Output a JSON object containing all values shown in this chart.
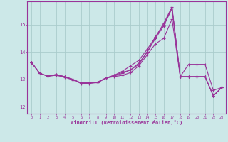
{
  "xlabel": "Windchill (Refroidissement éolien,°C)",
  "bg_color": "#cce8e8",
  "grid_color": "#aacccc",
  "line_color": "#993399",
  "xlim": [
    -0.5,
    23.5
  ],
  "ylim": [
    11.75,
    15.85
  ],
  "yticks": [
    12,
    13,
    14,
    15
  ],
  "xticks": [
    0,
    1,
    2,
    3,
    4,
    5,
    6,
    7,
    8,
    9,
    10,
    11,
    12,
    13,
    14,
    15,
    16,
    17,
    18,
    19,
    20,
    21,
    22,
    23
  ],
  "curves": [
    [
      13.62,
      13.22,
      13.12,
      13.18,
      13.1,
      13.0,
      12.87,
      12.87,
      12.88,
      13.05,
      13.1,
      13.15,
      13.25,
      13.5,
      13.9,
      14.3,
      14.5,
      15.2,
      13.1,
      13.55,
      13.55,
      13.55,
      12.6,
      12.7
    ],
    [
      13.62,
      13.22,
      13.12,
      13.18,
      13.1,
      13.0,
      12.87,
      12.87,
      12.88,
      13.05,
      13.15,
      13.25,
      13.35,
      13.6,
      14.0,
      14.55,
      15.0,
      15.6,
      13.1,
      13.1,
      13.1,
      13.1,
      12.4,
      12.7
    ],
    [
      13.62,
      13.22,
      13.12,
      13.15,
      13.1,
      13.0,
      12.87,
      12.87,
      12.9,
      13.05,
      13.15,
      13.3,
      13.5,
      13.7,
      14.1,
      14.55,
      15.05,
      15.65,
      13.1,
      13.1,
      13.1,
      13.1,
      12.4,
      12.7
    ],
    [
      13.62,
      13.22,
      13.12,
      13.15,
      13.08,
      12.98,
      12.85,
      12.85,
      12.9,
      13.05,
      13.12,
      13.22,
      13.35,
      13.55,
      14.0,
      14.5,
      14.95,
      15.6,
      13.1,
      13.1,
      13.1,
      13.1,
      12.4,
      12.7
    ]
  ]
}
